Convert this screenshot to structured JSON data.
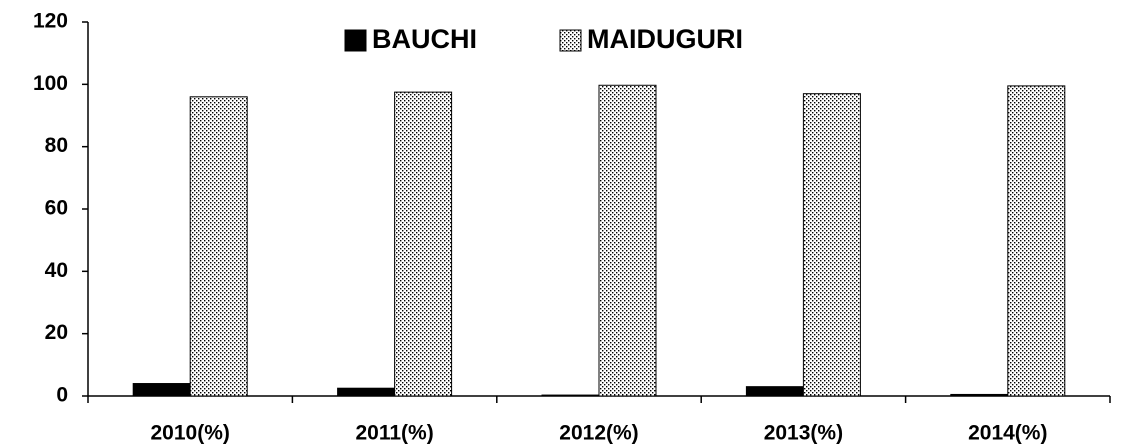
{
  "chart_data": {
    "type": "bar",
    "categories": [
      "2010(%)",
      "2011(%)",
      "2012(%)",
      "2013(%)",
      "2014(%)"
    ],
    "series": [
      {
        "name": "BAUCHI",
        "color": "#000000",
        "values": [
          4,
          2.5,
          0.3,
          3,
          0.5
        ]
      },
      {
        "name": "MAIDUGURI",
        "color": "#000000",
        "pattern": "dots",
        "values": [
          96,
          97.5,
          99.7,
          97,
          99.5
        ]
      }
    ],
    "ylim": [
      0,
      120
    ],
    "yticks": [
      0,
      20,
      40,
      60,
      80,
      100,
      120
    ],
    "grid": false,
    "legend": "top"
  }
}
